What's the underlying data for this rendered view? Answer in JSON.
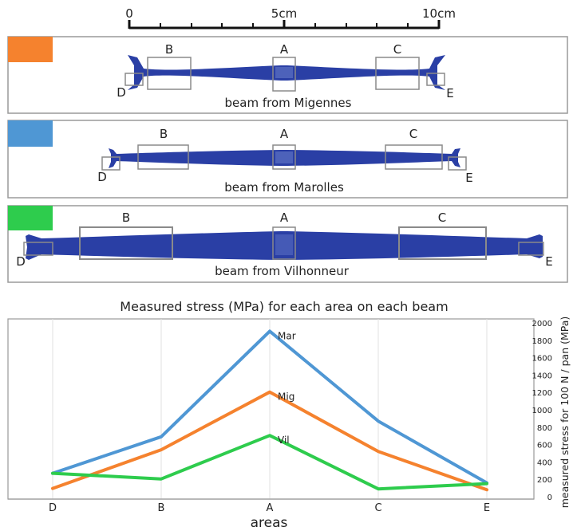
{
  "scale_bar": {
    "ticks": [
      "0",
      "5cm",
      "10cm"
    ]
  },
  "panels": [
    {
      "caption": "beam from Migennes",
      "swatch_color": "#f5822e",
      "labels": {
        "A": "A",
        "B": "B",
        "C": "C",
        "D": "D",
        "E": "E"
      }
    },
    {
      "caption": "beam from Marolles",
      "swatch_color": "#4f97d4",
      "labels": {
        "A": "A",
        "B": "B",
        "C": "C",
        "D": "D",
        "E": "E"
      }
    },
    {
      "caption": "beam from Vilhonneur",
      "swatch_color": "#2ecc4d",
      "labels": {
        "A": "A",
        "B": "B",
        "C": "C",
        "D": "D",
        "E": "E"
      }
    }
  ],
  "colors": {
    "beam": "#2a3fa5",
    "box": "#8a8a8a",
    "frame": "#9a9a9a",
    "grid": "#e0e0e0"
  },
  "chart_data": {
    "type": "line",
    "title": "Measured stress (MPa) for each area on each beam",
    "xlabel": "areas",
    "ylabel": "measured stress for 100 N / pan (MPa)",
    "categories": [
      "D",
      "B",
      "A",
      "C",
      "E"
    ],
    "ylim": [
      0,
      2000
    ],
    "yticks": [
      0,
      200,
      400,
      600,
      800,
      1000,
      1200,
      1400,
      1600,
      1800,
      2000
    ],
    "grid": "vertical",
    "y_axis_side": "right",
    "series": [
      {
        "name": "Mar",
        "color": "#4f97d4",
        "values": [
          270,
          690,
          1905,
          870,
          160
        ]
      },
      {
        "name": "Mig",
        "color": "#f5822e",
        "values": [
          95,
          540,
          1205,
          520,
          80
        ]
      },
      {
        "name": "Vil",
        "color": "#2ecc4d",
        "values": [
          270,
          205,
          705,
          90,
          150
        ]
      }
    ]
  }
}
